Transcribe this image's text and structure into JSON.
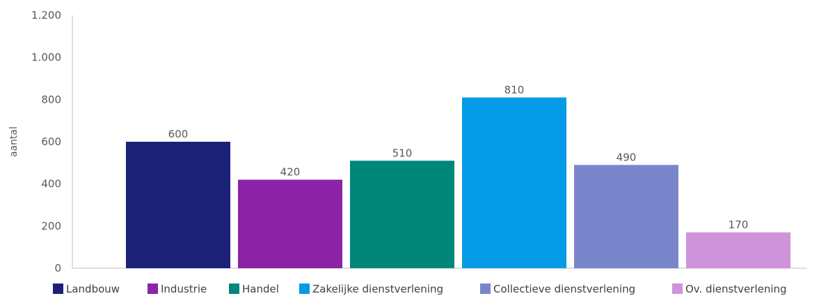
{
  "chart_data": {
    "type": "bar",
    "title": "",
    "xlabel": "",
    "ylabel": "aantal",
    "ylim": [
      0,
      1200
    ],
    "yticks": [
      0,
      200,
      400,
      600,
      800,
      1000,
      1200
    ],
    "ytick_labels": [
      "0",
      "200",
      "400",
      "600",
      "800",
      "1.000",
      "1.200"
    ],
    "grid": false,
    "legend_position": "bottom",
    "series": [
      {
        "name": "Landbouw",
        "value": 600,
        "label": "600",
        "color": "#1c2178"
      },
      {
        "name": "Industrie",
        "value": 420,
        "label": "420",
        "color": "#8c24a8"
      },
      {
        "name": "Handel",
        "value": 510,
        "label": "510",
        "color": "#00877a"
      },
      {
        "name": "Zakelijke dienstverlening",
        "value": 810,
        "label": "810",
        "color": "#039be5"
      },
      {
        "name": "Collectieve dienstverlening",
        "value": 490,
        "label": "490",
        "color": "#7986cb"
      },
      {
        "name": "Ov. dienstverlening",
        "value": 170,
        "label": "170",
        "color": "#ce93d8"
      }
    ]
  }
}
